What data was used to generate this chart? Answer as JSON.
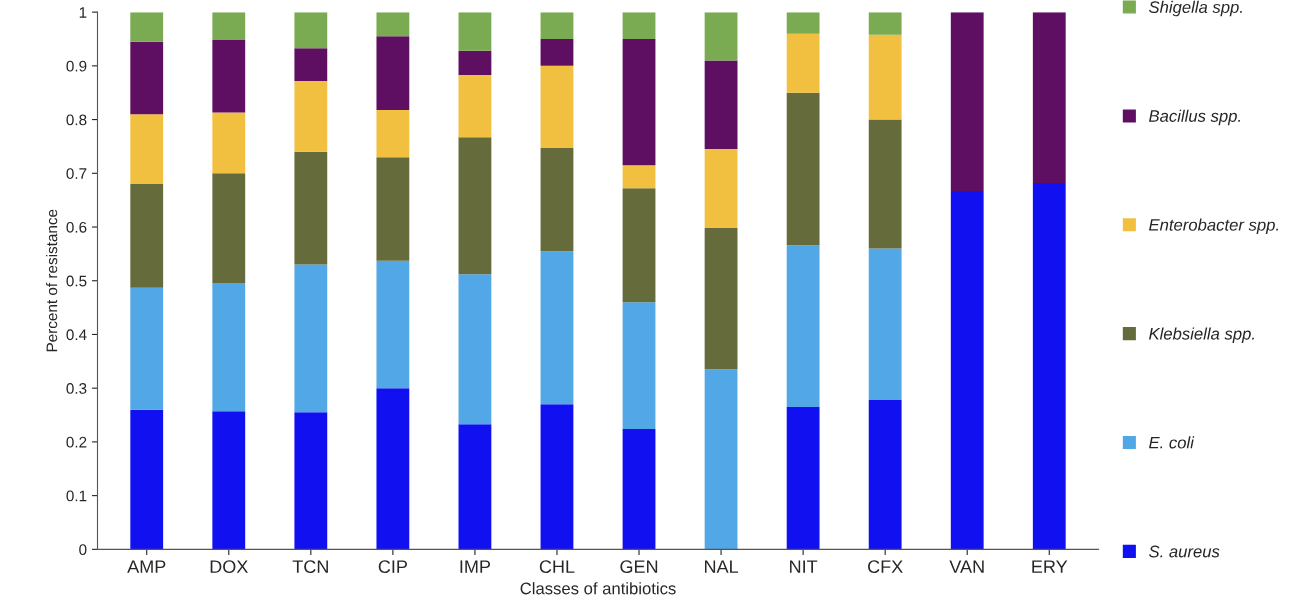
{
  "chart_data": {
    "type": "bar",
    "stacked": true,
    "xlabel": "Classes of antibiotics",
    "ylabel": "Percent of resistance",
    "categories": [
      "AMP",
      "DOX",
      "TCN",
      "CIP",
      "IMP",
      "CHL",
      "GEN",
      "NAL",
      "NIT",
      "CFX",
      "VAN",
      "ERY"
    ],
    "series": [
      {
        "name": "S. aureus",
        "color": "#1010f0",
        "values": [
          0.26,
          0.257,
          0.255,
          0.3,
          0.233,
          0.27,
          0.224,
          0,
          0.265,
          0.278,
          0.667,
          0.682
        ]
      },
      {
        "name": "E. coli",
        "color": "#52a8e6",
        "values": [
          0.227,
          0.238,
          0.275,
          0.237,
          0.279,
          0.285,
          0.236,
          0.335,
          0.301,
          0.282,
          0,
          0
        ]
      },
      {
        "name": "Klebsiella spp.",
        "color": "#656b3a",
        "values": [
          0.193,
          0.205,
          0.21,
          0.193,
          0.255,
          0.192,
          0.212,
          0.263,
          0.284,
          0.24,
          0,
          0
        ]
      },
      {
        "name": "Enterobacter spp.",
        "color": "#f2c040",
        "values": [
          0.13,
          0.113,
          0.132,
          0.088,
          0.116,
          0.153,
          0.043,
          0.147,
          0.11,
          0.158,
          0,
          0
        ]
      },
      {
        "name": "Bacillus spp.",
        "color": "#5e0f62",
        "values": [
          0.135,
          0.135,
          0.061,
          0.137,
          0.045,
          0.05,
          0.235,
          0.165,
          0,
          0,
          0.333,
          0.318
        ]
      },
      {
        "name": "Shigella spp.",
        "color": "#7aab52",
        "values": [
          0.055,
          0.052,
          0.067,
          0.045,
          0.072,
          0.05,
          0.05,
          0.09,
          0.04,
          0.042,
          0,
          0
        ]
      }
    ],
    "ylim": [
      0,
      1
    ],
    "yticks": [
      0,
      0.1,
      0.2,
      0.3,
      0.4,
      0.5,
      0.6,
      0.7,
      0.8,
      0.9,
      1
    ],
    "grid": false,
    "legend": "right"
  }
}
